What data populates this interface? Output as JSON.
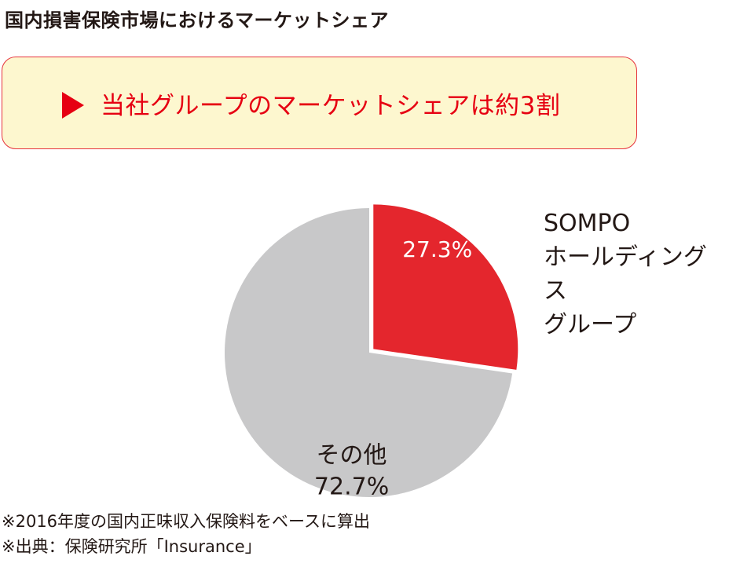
{
  "title": "国内損害保険市場におけるマーケットシェア",
  "callout": {
    "text": "当社グループのマーケットシェアは約3割",
    "color": "#e60012"
  },
  "chart_data": {
    "type": "pie",
    "start": "12 o'clock",
    "direction": "clockwise",
    "slices": [
      {
        "label": "SOMPO\nホールディングス\nグループ",
        "value": 27.3,
        "value_label": "27.3%",
        "color": "#e4262d",
        "exploded": true
      },
      {
        "label": "その他",
        "value": 72.7,
        "value_label": "72.7%",
        "color": "#c8c8c9",
        "exploded": false
      }
    ]
  },
  "notes": [
    "※2016年度の国内正味収入保険料をベースに算出",
    "※出典：保険研究所「Insurance」"
  ]
}
